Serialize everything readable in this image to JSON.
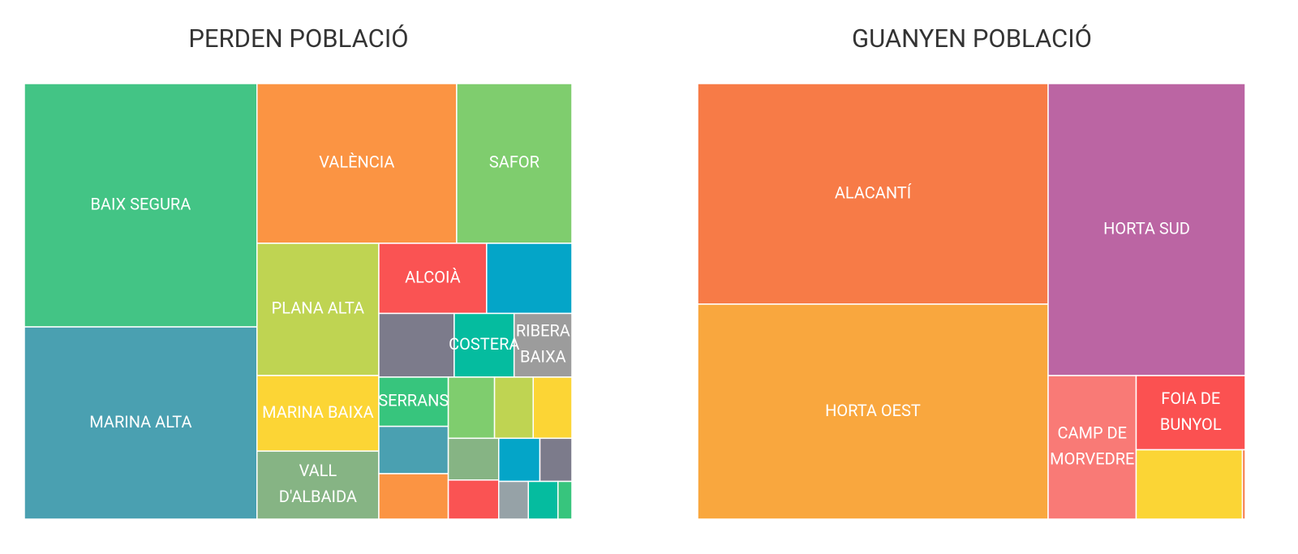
{
  "chart_data": [
    {
      "type": "treemap",
      "title": "PERDEN POBLACIÓ",
      "categories": [
        "BAIX SEGURA",
        "MARINA ALTA",
        "VALÈNCIA",
        "SAFOR",
        "PLANA ALTA",
        "MARINA BAIXA",
        "VALL D'ALBAIDA",
        "ALCOIÀ",
        null,
        null,
        "COSTERA",
        "RIBERA BAIXA",
        "SERRANS",
        null,
        null,
        null,
        null,
        null,
        null,
        null,
        null,
        null,
        null,
        null,
        null
      ],
      "values": [
        86.1,
        68.0,
        48.5,
        28.0,
        24.5,
        14.0,
        12.6,
        11.5,
        9.1,
        7.3,
        5.8,
        5.6,
        5.2,
        5.0,
        4.8,
        4.3,
        3.6,
        3.6,
        3.2,
        3.0,
        2.7,
        2.1,
        1.7,
        1.7,
        0.8
      ],
      "colors": [
        "#43c485",
        "#4aa0b1",
        "#fb9443",
        "#7fcd6e",
        "#bfd452",
        "#fcd535",
        "#86b484",
        "#fa5353",
        "#04a5c8",
        "#7c7b8b",
        "#05bc9f",
        "#9c9c9c",
        "#37c57d",
        "#4aa0b1",
        "#fb9443",
        "#7fcd6e",
        "#bfd452",
        "#fcd535",
        "#86b484",
        "#fa5353",
        "#04a5c8",
        "#7c7b8b",
        "#96a2a7",
        "#05bc9f",
        "#37c57d"
      ]
    },
    {
      "type": "treemap",
      "title": "GUANYEN POBLACIÓ",
      "categories": [
        "ALACANTÍ",
        "HORTA OEST",
        "HORTA SUD",
        "CAMP DE MORVEDRE",
        "FOIA DE BUNYOL",
        null,
        null
      ],
      "values": [
        117.5,
        114.5,
        87.5,
        19.2,
        12.3,
        11.2,
        0.3
      ],
      "colors": [
        "#f77b47",
        "#f9a73e",
        "#bb65a3",
        "#f97a76",
        "#fb5151",
        "#fbd535",
        "#f77b47"
      ]
    }
  ]
}
